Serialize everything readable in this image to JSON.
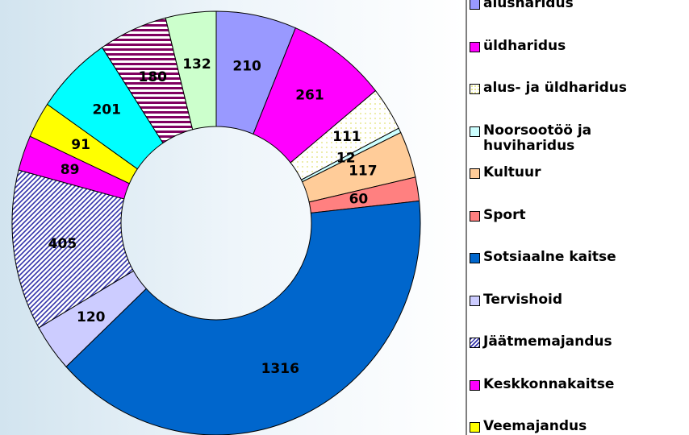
{
  "chart_data": {
    "type": "donut",
    "categories": [
      "alusharidus",
      "üldharidus",
      "alus- ja üldharidus",
      "Noorsootöö ja huviharidus",
      "Kultuur",
      "Sport",
      "Sotsiaalne kaitse",
      "Tervishoid",
      "Jäätmemajandus",
      "Keskkonnakaitse",
      "Veemajandus",
      null,
      null,
      null
    ],
    "values": [
      210,
      261,
      111,
      12,
      117,
      60,
      1316,
      120,
      405,
      89,
      91,
      201,
      180,
      132
    ],
    "colors": [
      "#9999ff",
      "#ff00ff",
      "#ffffe0",
      "#ccffff",
      "#ffcc99",
      "#ff8080",
      "#0066cc",
      "#ccccff",
      "#3333aa",
      "#ff00ff",
      "#ffff00",
      "#00ffff",
      "#800060",
      "#ccffcc"
    ],
    "patterns": [
      null,
      null,
      "dots",
      null,
      null,
      null,
      null,
      null,
      "diagonal",
      null,
      null,
      null,
      "horizontal",
      null
    ],
    "legend": "right"
  }
}
